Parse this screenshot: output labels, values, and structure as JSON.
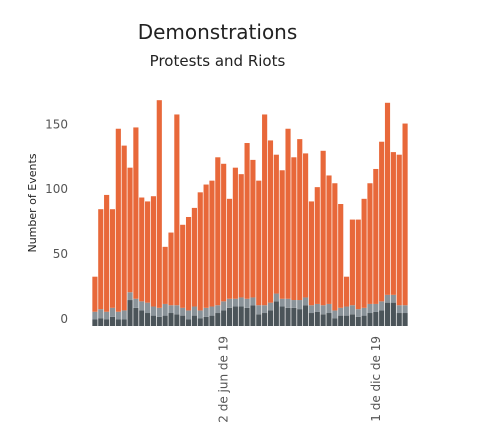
{
  "chart_data": {
    "type": "bar",
    "stacked": true,
    "title": "Demonstrations",
    "subtitle": "Protests and Riots",
    "xlabel": "",
    "ylabel": "Number of Events",
    "ylim": [
      0,
      178
    ],
    "yticks": [
      0,
      50,
      100,
      150
    ],
    "grid": false,
    "x_tick_labels": [
      {
        "label": "2 de jun de 19",
        "bar_index": 22
      },
      {
        "label": "1 de dic de 19",
        "bar_index": 48
      }
    ],
    "colors": {
      "protests_top": "#e8683a",
      "riots_low": "#8a9399",
      "riots_dark": "#4b5459"
    },
    "series": [
      {
        "values": [
          5,
          6,
          5,
          7,
          5,
          5,
          20,
          14,
          12,
          10,
          8,
          7,
          8,
          10,
          9,
          8,
          5,
          8,
          6,
          7,
          8,
          10,
          12,
          14,
          15,
          15,
          14,
          16,
          9,
          10,
          12,
          19,
          15,
          14,
          14,
          13,
          16,
          10,
          11,
          9,
          10,
          6,
          8,
          8,
          9,
          7,
          8,
          10,
          11,
          12,
          18,
          18,
          10,
          10
        ]
      },
      {
        "values": [
          6,
          7,
          6,
          7,
          6,
          7,
          6,
          7,
          7,
          8,
          7,
          7,
          9,
          6,
          7,
          6,
          7,
          7,
          6,
          7,
          7,
          6,
          7,
          7,
          6,
          7,
          7,
          6,
          7,
          6,
          6,
          6,
          6,
          7,
          6,
          7,
          6,
          6,
          6,
          7,
          7,
          6,
          6,
          7,
          7,
          6,
          6,
          7,
          6,
          7,
          6,
          6,
          6,
          6
        ]
      },
      {
        "values": [
          27,
          77,
          90,
          76,
          141,
          127,
          96,
          132,
          80,
          78,
          85,
          160,
          44,
          56,
          147,
          64,
          72,
          76,
          91,
          95,
          97,
          114,
          106,
          77,
          101,
          95,
          120,
          106,
          96,
          147,
          125,
          107,
          99,
          131,
          110,
          124,
          111,
          80,
          90,
          119,
          99,
          98,
          80,
          23,
          66,
          69,
          84,
          93,
          104,
          123,
          148,
          110,
          116,
          140
        ]
      }
    ]
  }
}
